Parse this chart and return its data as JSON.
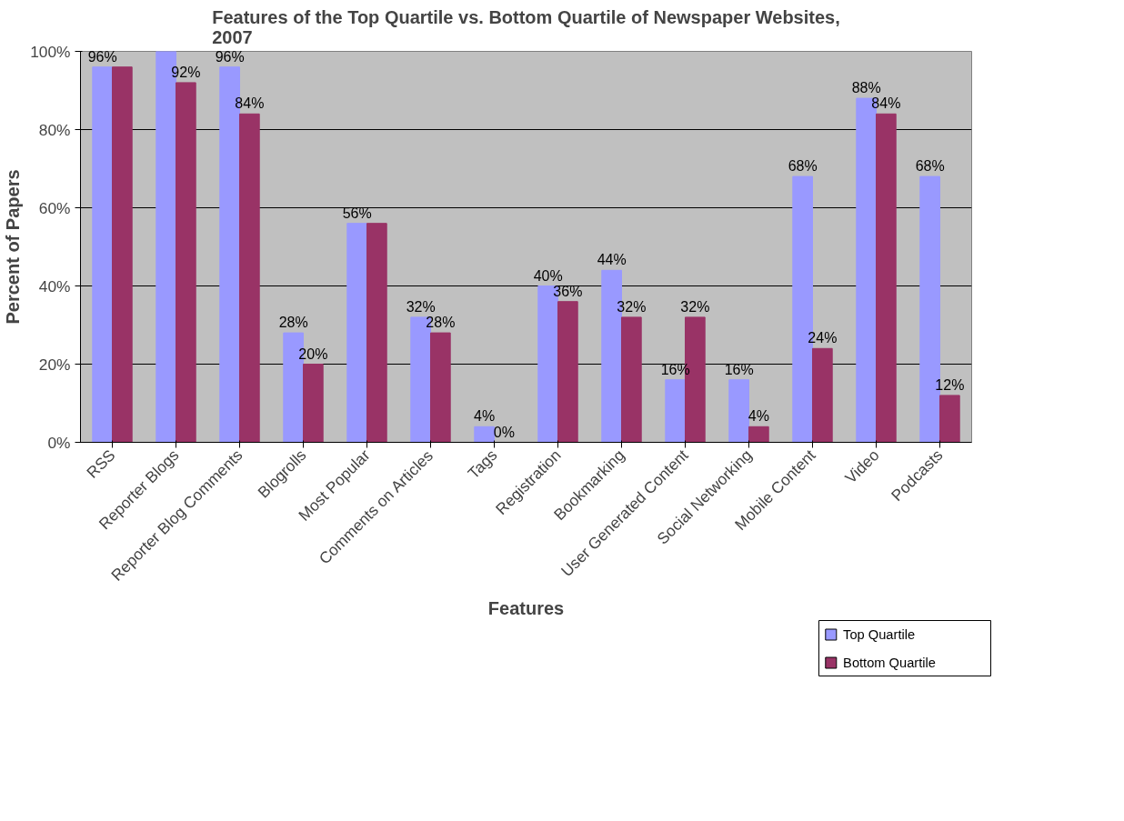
{
  "chart_data": {
    "type": "bar",
    "title": "Features of the Top Quartile vs. Bottom Quartile of Newspaper Websites, 2007",
    "xlabel": "Features",
    "ylabel": "Percent of Papers",
    "categories": [
      "RSS",
      "Reporter Blogs",
      "Reporter Blog Comments",
      "Blogrolls",
      "Most Popular",
      "Comments on Articles",
      "Tags",
      "Registration",
      "Bookmarking",
      "User Generated Content",
      "Social Networking",
      "Mobile Content",
      "Video",
      "Podcasts"
    ],
    "series": [
      {
        "name": "Top Quartile",
        "color": "#9999ff",
        "values": [
          96,
          100,
          96,
          28,
          56,
          32,
          4,
          40,
          44,
          16,
          16,
          68,
          88,
          68
        ],
        "value_labels": [
          "96%",
          null,
          "96%",
          "28%",
          "56%",
          "32%",
          "4%",
          "40%",
          "44%",
          "16%",
          "16%",
          "68%",
          "88%",
          "68%"
        ]
      },
      {
        "name": "Bottom Quartile",
        "color": "#993366",
        "values": [
          96,
          92,
          84,
          20,
          56,
          28,
          0,
          36,
          32,
          32,
          4,
          24,
          84,
          12
        ],
        "value_labels": [
          null,
          "92%",
          "84%",
          "20%",
          null,
          "28%",
          "0%",
          "36%",
          "32%",
          "32%",
          "4%",
          "24%",
          "84%",
          "12%"
        ]
      }
    ],
    "ylim": [
      0,
      100
    ],
    "yticks": [
      {
        "value": 0,
        "label": "0%"
      },
      {
        "value": 20,
        "label": "20%"
      },
      {
        "value": 40,
        "label": "40%"
      },
      {
        "value": 60,
        "label": "60%"
      },
      {
        "value": 80,
        "label": "80%"
      },
      {
        "value": 100,
        "label": "100%"
      }
    ],
    "grid": "y",
    "legend": "bottom right"
  }
}
